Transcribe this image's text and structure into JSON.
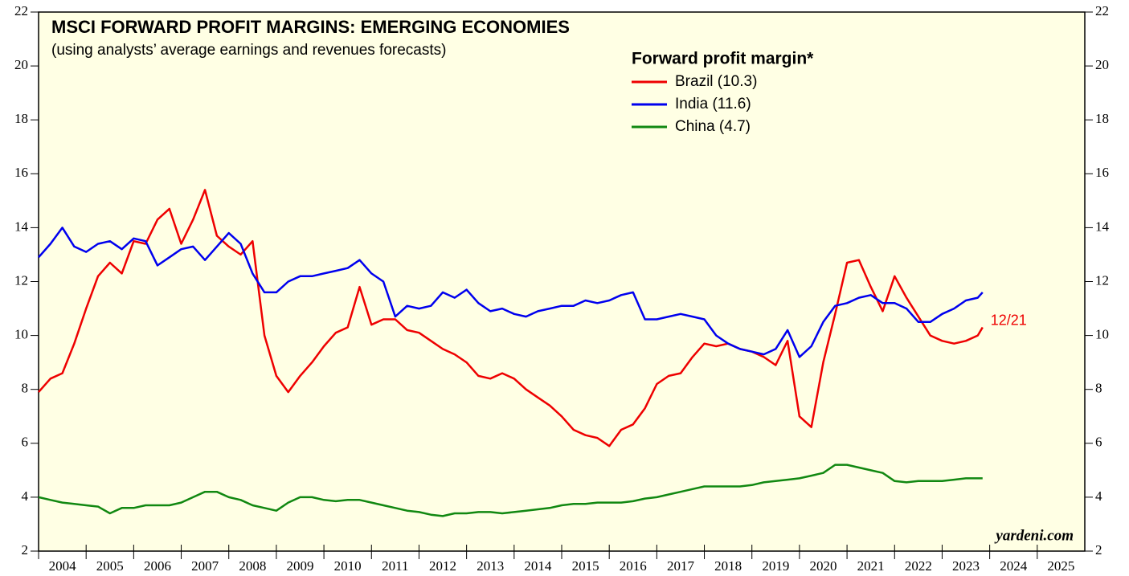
{
  "chart_data": {
    "type": "line",
    "title": "MSCI FORWARD PROFIT MARGINS: EMERGING ECONOMIES",
    "subtitle": "(using analysts’ average earnings and revenues forecasts)",
    "legend_title": "Forward profit margin*",
    "annotations": [
      "12/21",
      "yardeni.com"
    ],
    "x": [
      2004.0,
      2004.25,
      2004.5,
      2004.75,
      2005.0,
      2005.25,
      2005.5,
      2005.75,
      2006.0,
      2006.25,
      2006.5,
      2006.75,
      2007.0,
      2007.25,
      2007.5,
      2007.75,
      2008.0,
      2008.25,
      2008.5,
      2008.75,
      2009.0,
      2009.25,
      2009.5,
      2009.75,
      2010.0,
      2010.25,
      2010.5,
      2010.75,
      2011.0,
      2011.25,
      2011.5,
      2011.75,
      2012.0,
      2012.25,
      2012.5,
      2012.75,
      2013.0,
      2013.25,
      2013.5,
      2013.75,
      2014.0,
      2014.25,
      2014.5,
      2014.75,
      2015.0,
      2015.25,
      2015.5,
      2015.75,
      2016.0,
      2016.25,
      2016.5,
      2016.75,
      2017.0,
      2017.25,
      2017.5,
      2017.75,
      2018.0,
      2018.25,
      2018.5,
      2018.75,
      2019.0,
      2019.25,
      2019.5,
      2019.75,
      2020.0,
      2020.25,
      2020.5,
      2020.75,
      2021.0,
      2021.25,
      2021.5,
      2021.75,
      2022.0,
      2022.25,
      2022.5,
      2022.75,
      2023.0,
      2023.25,
      2023.5,
      2023.75,
      2023.85
    ],
    "series": [
      {
        "name": "Brazil (10.3)",
        "color": "#ee0000",
        "values": [
          7.9,
          8.4,
          8.6,
          9.7,
          11.0,
          12.2,
          12.7,
          12.3,
          13.5,
          13.4,
          14.3,
          14.7,
          13.4,
          14.3,
          15.4,
          13.7,
          13.3,
          13.0,
          13.5,
          10.0,
          8.5,
          7.9,
          8.5,
          9.0,
          9.6,
          10.1,
          10.3,
          11.8,
          10.4,
          10.6,
          10.6,
          10.2,
          10.1,
          9.8,
          9.5,
          9.3,
          9.0,
          8.5,
          8.4,
          8.6,
          8.4,
          8.0,
          7.7,
          7.4,
          7.0,
          6.5,
          6.3,
          6.2,
          5.9,
          6.5,
          6.7,
          7.3,
          8.2,
          8.5,
          8.6,
          9.2,
          9.7,
          9.6,
          9.7,
          9.5,
          9.4,
          9.2,
          8.9,
          9.8,
          7.0,
          6.6,
          9.0,
          10.8,
          12.7,
          12.8,
          11.8,
          10.9,
          12.2,
          11.4,
          10.7,
          10.0,
          9.8,
          9.7,
          9.8,
          10.0,
          10.3
        ]
      },
      {
        "name": "India (11.6)",
        "color": "#0000ee",
        "values": [
          12.9,
          13.4,
          14.0,
          13.3,
          13.1,
          13.4,
          13.5,
          13.2,
          13.6,
          13.5,
          12.6,
          12.9,
          13.2,
          13.3,
          12.8,
          13.3,
          13.8,
          13.4,
          12.3,
          11.6,
          11.6,
          12.0,
          12.2,
          12.2,
          12.3,
          12.4,
          12.5,
          12.8,
          12.3,
          12.0,
          10.7,
          11.1,
          11.0,
          11.1,
          11.6,
          11.4,
          11.7,
          11.2,
          10.9,
          11.0,
          10.8,
          10.7,
          10.9,
          11.0,
          11.1,
          11.1,
          11.3,
          11.2,
          11.3,
          11.5,
          11.6,
          10.6,
          10.6,
          10.7,
          10.8,
          10.7,
          10.6,
          10.0,
          9.7,
          9.5,
          9.4,
          9.3,
          9.5,
          10.2,
          9.2,
          9.6,
          10.5,
          11.1,
          11.2,
          11.4,
          11.5,
          11.2,
          11.2,
          11.0,
          10.5,
          10.5,
          10.8,
          11.0,
          11.3,
          11.4,
          11.6
        ]
      },
      {
        "name": "China (4.7)",
        "color": "#118811",
        "values": [
          4.0,
          3.9,
          3.8,
          3.75,
          3.7,
          3.65,
          3.4,
          3.6,
          3.6,
          3.7,
          3.7,
          3.7,
          3.8,
          4.0,
          4.2,
          4.2,
          4.0,
          3.9,
          3.7,
          3.6,
          3.5,
          3.8,
          4.0,
          4.0,
          3.9,
          3.85,
          3.9,
          3.9,
          3.8,
          3.7,
          3.6,
          3.5,
          3.45,
          3.35,
          3.3,
          3.4,
          3.4,
          3.45,
          3.45,
          3.4,
          3.45,
          3.5,
          3.55,
          3.6,
          3.7,
          3.75,
          3.75,
          3.8,
          3.8,
          3.8,
          3.85,
          3.95,
          4.0,
          4.1,
          4.2,
          4.3,
          4.4,
          4.4,
          4.4,
          4.4,
          4.45,
          4.55,
          4.6,
          4.65,
          4.7,
          4.8,
          4.9,
          5.2,
          5.2,
          5.1,
          5.0,
          4.9,
          4.6,
          4.55,
          4.6,
          4.6,
          4.6,
          4.65,
          4.7,
          4.7,
          4.7
        ]
      }
    ],
    "xlim": [
      2004,
      2026
    ],
    "xticks": [
      2004,
      2005,
      2006,
      2007,
      2008,
      2009,
      2010,
      2011,
      2012,
      2013,
      2014,
      2015,
      2016,
      2017,
      2018,
      2019,
      2020,
      2021,
      2022,
      2023,
      2024,
      2025
    ],
    "ylim": [
      2,
      22
    ],
    "yticks": [
      2,
      4,
      6,
      8,
      10,
      12,
      14,
      16,
      18,
      20,
      22
    ]
  }
}
